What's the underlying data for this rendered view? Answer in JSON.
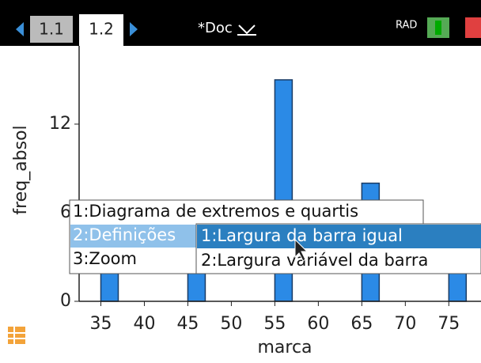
{
  "tabs": [
    "1.1",
    "1.2"
  ],
  "document_title": "*Doc",
  "mode": "RAD",
  "chart_data": {
    "type": "histogram",
    "x_label": "marca",
    "y_label": "freq_absol",
    "bins": [
      35,
      37,
      39,
      41,
      43,
      45,
      47,
      49,
      51,
      53,
      55,
      57,
      59,
      61,
      63,
      65,
      67,
      69,
      71,
      73,
      75,
      77
    ],
    "counts": [
      3,
      0,
      0,
      0,
      0,
      4,
      0,
      0,
      0,
      0,
      15,
      0,
      0,
      0,
      0,
      8,
      0,
      0,
      0,
      0,
      5
    ],
    "color": "#2b8ae6",
    "xlim": [
      32.5,
      78.7
    ],
    "ylim": [
      0,
      17.3
    ],
    "xticks": [
      35,
      40,
      45,
      50,
      55,
      60,
      65,
      70,
      75
    ],
    "yticks": [
      0,
      6,
      12
    ]
  },
  "menu": {
    "items": [
      "1:Diagrama de extremos e quartis",
      "2:Definições",
      "3:Zoom"
    ],
    "submenu": [
      "1:Largura da barra igual",
      "2:Largura variável da barra"
    ]
  }
}
